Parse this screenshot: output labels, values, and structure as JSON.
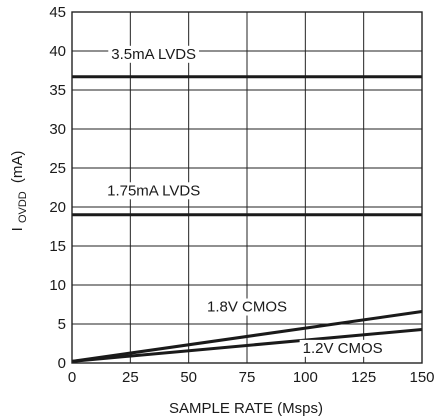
{
  "chart_data": {
    "type": "line",
    "xlabel": "SAMPLE RATE (Msps)",
    "ylabel_main": "I",
    "ylabel_sub": "OVDD",
    "ylabel_unit": "(mA)",
    "xlim": [
      0,
      150
    ],
    "ylim": [
      0,
      45
    ],
    "x_ticks": [
      0,
      25,
      50,
      75,
      100,
      125,
      150
    ],
    "y_ticks": [
      0,
      5,
      10,
      15,
      20,
      25,
      30,
      35,
      40,
      45
    ],
    "grid": true,
    "series": [
      {
        "name": "3.5mA LVDS",
        "x": [
          0,
          150
        ],
        "y": [
          36.7,
          36.7
        ],
        "label_x": 35,
        "label_y": 39.0
      },
      {
        "name": "1.75mA LVDS",
        "x": [
          0,
          150
        ],
        "y": [
          19.0,
          19.0
        ],
        "label_x": 35,
        "label_y": 21.5
      },
      {
        "name": "1.8V CMOS",
        "x": [
          0,
          150
        ],
        "y": [
          0.2,
          6.6
        ],
        "label_x": 75,
        "label_y": 6.6
      },
      {
        "name": "1.2V CMOS",
        "x": [
          0,
          150
        ],
        "y": [
          0.2,
          4.3
        ],
        "label_x": 116,
        "label_y": 1.3
      }
    ],
    "colors": {
      "line": "#1a1a1a",
      "grid": "#222222",
      "background": "#ffffff"
    }
  }
}
